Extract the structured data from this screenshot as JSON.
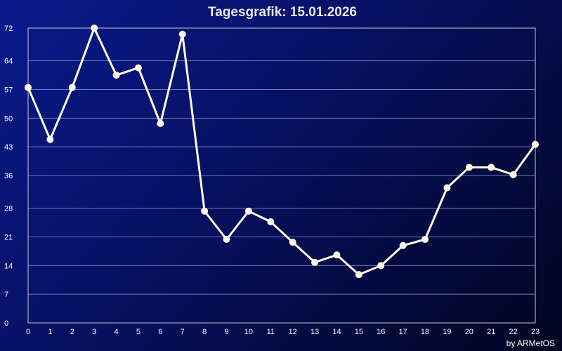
{
  "chart_data": {
    "type": "line",
    "title": "Tagesgrafik: 15.01.2026",
    "credit": "by ARMetOS",
    "xlabel": "",
    "ylabel": "",
    "x": [
      0,
      1,
      2,
      3,
      4,
      5,
      6,
      7,
      8,
      9,
      10,
      11,
      12,
      13,
      14,
      15,
      16,
      17,
      18,
      19,
      20,
      21,
      22,
      23
    ],
    "x_tick_labels": [
      "0",
      "1",
      "2",
      "3",
      "4",
      "5",
      "6",
      "7",
      "8",
      "9",
      "10",
      "11",
      "12",
      "13",
      "14",
      "15",
      "16",
      "17",
      "18",
      "19",
      "20",
      "21",
      "22",
      "23"
    ],
    "y_ticks": [
      0,
      7,
      14,
      21,
      28,
      36,
      43,
      50,
      57,
      64,
      72
    ],
    "y_tick_labels": [
      "0",
      "7",
      "14",
      "21",
      "28",
      "36",
      "43",
      "50",
      "57",
      "64",
      "72"
    ],
    "ylim": [
      0,
      72
    ],
    "xlim": [
      0,
      23
    ],
    "grid": true,
    "series": [
      {
        "values": [
          57.5,
          44.8,
          57.5,
          72,
          60.5,
          62.3,
          48.7,
          70.5,
          27.3,
          20.4,
          27.3,
          24.7,
          19.7,
          14.8,
          16.6,
          11.8,
          14,
          18.9,
          20.4,
          33,
          38,
          38,
          36.2,
          43.6
        ],
        "color": "#fffbe6"
      }
    ],
    "colors": {
      "line": "#fffbe6",
      "marker": "#fffbe6",
      "title": "#e8e8f0",
      "grid": "#6f7ab8"
    }
  }
}
